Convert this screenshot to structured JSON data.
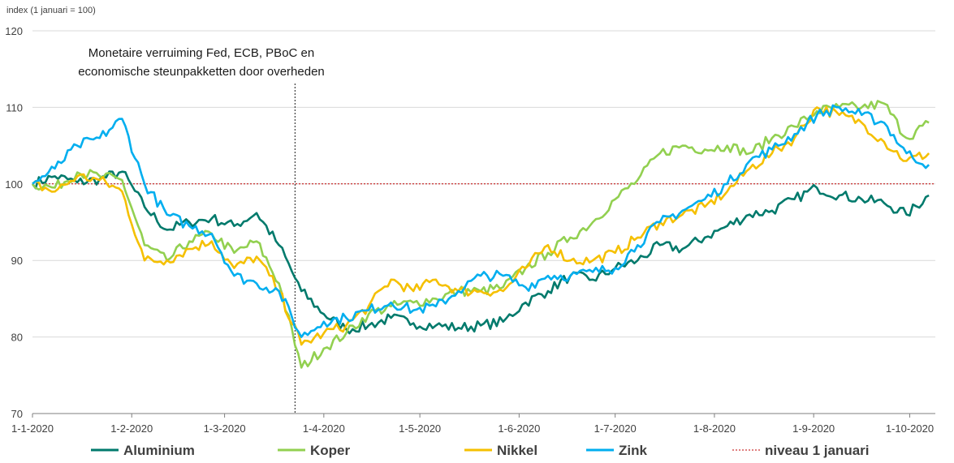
{
  "chart_data": {
    "type": "line",
    "ylabel": "index (1 januari = 100)",
    "ylim": [
      70,
      120
    ],
    "yticks": [
      "70",
      "80",
      "90",
      "100",
      "110",
      "120"
    ],
    "xlim": [
      "2020-01-01",
      "2020-10-09"
    ],
    "xticks": [
      {
        "date": "2020-01-01",
        "label": "1-1-2020"
      },
      {
        "date": "2020-02-01",
        "label": "1-2-2020"
      },
      {
        "date": "2020-03-01",
        "label": "1-3-2020"
      },
      {
        "date": "2020-04-01",
        "label": "1-4-2020"
      },
      {
        "date": "2020-05-01",
        "label": "1-5-2020"
      },
      {
        "date": "2020-06-01",
        "label": "1-6-2020"
      },
      {
        "date": "2020-07-01",
        "label": "1-7-2020"
      },
      {
        "date": "2020-08-01",
        "label": "1-8-2020"
      },
      {
        "date": "2020-09-01",
        "label": "1-9-2020"
      },
      {
        "date": "2020-10-01",
        "label": "1-10-2020"
      }
    ],
    "reference_line": {
      "name": "niveau 1 januari",
      "value": 100,
      "color": "#c00000"
    },
    "annotation": {
      "date": "2020-03-23",
      "lines": [
        "Monetaire verruiming Fed, ECB, PBoC en",
        "economische steunpakketten door overheden"
      ]
    },
    "series": [
      {
        "name": "Aluminium",
        "color": "#007a6c",
        "points": [
          [
            "2020-01-01",
            100
          ],
          [
            "2020-01-08",
            101
          ],
          [
            "2020-01-15",
            100.2
          ],
          [
            "2020-01-22",
            100.6
          ],
          [
            "2020-01-29",
            101.6
          ],
          [
            "2020-02-05",
            97
          ],
          [
            "2020-02-12",
            94
          ],
          [
            "2020-02-19",
            95
          ],
          [
            "2020-02-26",
            95.5
          ],
          [
            "2020-03-04",
            94.5
          ],
          [
            "2020-03-11",
            96.2
          ],
          [
            "2020-03-18",
            92
          ],
          [
            "2020-03-25",
            86
          ],
          [
            "2020-04-01",
            83
          ],
          [
            "2020-04-08",
            81
          ],
          [
            "2020-04-15",
            81.5
          ],
          [
            "2020-04-22",
            82.5
          ],
          [
            "2020-04-29",
            81.8
          ],
          [
            "2020-05-06",
            81.5
          ],
          [
            "2020-05-13",
            81.2
          ],
          [
            "2020-05-20",
            81.5
          ],
          [
            "2020-05-27",
            82
          ],
          [
            "2020-06-03",
            84.5
          ],
          [
            "2020-06-10",
            86
          ],
          [
            "2020-06-17",
            88
          ],
          [
            "2020-06-24",
            87.5
          ],
          [
            "2020-07-01",
            89
          ],
          [
            "2020-07-08",
            90
          ],
          [
            "2020-07-15",
            92
          ],
          [
            "2020-07-22",
            91.5
          ],
          [
            "2020-07-29",
            93
          ],
          [
            "2020-08-05",
            94.5
          ],
          [
            "2020-08-12",
            96
          ],
          [
            "2020-08-19",
            96.5
          ],
          [
            "2020-08-26",
            98
          ],
          [
            "2020-09-02",
            99.5
          ],
          [
            "2020-09-09",
            98.5
          ],
          [
            "2020-09-16",
            98
          ],
          [
            "2020-09-23",
            97.5
          ],
          [
            "2020-09-30",
            96
          ],
          [
            "2020-10-07",
            98.5
          ]
        ]
      },
      {
        "name": "Koper",
        "color": "#92d050",
        "points": [
          [
            "2020-01-01",
            100
          ],
          [
            "2020-01-08",
            99.5
          ],
          [
            "2020-01-15",
            101.5
          ],
          [
            "2020-01-22",
            101
          ],
          [
            "2020-01-29",
            100.5
          ],
          [
            "2020-02-05",
            92
          ],
          [
            "2020-02-12",
            90
          ],
          [
            "2020-02-19",
            92.5
          ],
          [
            "2020-02-26",
            93.5
          ],
          [
            "2020-03-04",
            91
          ],
          [
            "2020-03-11",
            92.5
          ],
          [
            "2020-03-18",
            87
          ],
          [
            "2020-03-25",
            76
          ],
          [
            "2020-04-01",
            78.5
          ],
          [
            "2020-04-08",
            80.5
          ],
          [
            "2020-04-15",
            83
          ],
          [
            "2020-04-22",
            84
          ],
          [
            "2020-04-29",
            84.5
          ],
          [
            "2020-05-06",
            85
          ],
          [
            "2020-05-13",
            86
          ],
          [
            "2020-05-20",
            86
          ],
          [
            "2020-05-27",
            86.5
          ],
          [
            "2020-06-03",
            89
          ],
          [
            "2020-06-10",
            91
          ],
          [
            "2020-06-17",
            93
          ],
          [
            "2020-06-24",
            95
          ],
          [
            "2020-07-01",
            98
          ],
          [
            "2020-07-08",
            100.5
          ],
          [
            "2020-07-15",
            104
          ],
          [
            "2020-07-22",
            105
          ],
          [
            "2020-07-29",
            104.5
          ],
          [
            "2020-08-05",
            105
          ],
          [
            "2020-08-12",
            104
          ],
          [
            "2020-08-19",
            106
          ],
          [
            "2020-08-26",
            107.5
          ],
          [
            "2020-09-02",
            109.5
          ],
          [
            "2020-09-09",
            110
          ],
          [
            "2020-09-16",
            110
          ],
          [
            "2020-09-23",
            110.5
          ],
          [
            "2020-09-30",
            106
          ],
          [
            "2020-10-07",
            108
          ]
        ]
      },
      {
        "name": "Nikkel",
        "color": "#f5c000",
        "points": [
          [
            "2020-01-01",
            100
          ],
          [
            "2020-01-08",
            99
          ],
          [
            "2020-01-15",
            101
          ],
          [
            "2020-01-22",
            100.5
          ],
          [
            "2020-01-29",
            99
          ],
          [
            "2020-02-05",
            90
          ],
          [
            "2020-02-12",
            90
          ],
          [
            "2020-02-19",
            91.5
          ],
          [
            "2020-02-26",
            92.5
          ],
          [
            "2020-03-04",
            89
          ],
          [
            "2020-03-11",
            90.5
          ],
          [
            "2020-03-18",
            86
          ],
          [
            "2020-03-25",
            79
          ],
          [
            "2020-04-01",
            80.5
          ],
          [
            "2020-04-08",
            81.5
          ],
          [
            "2020-04-15",
            84
          ],
          [
            "2020-04-22",
            87.5
          ],
          [
            "2020-04-29",
            86
          ],
          [
            "2020-05-06",
            87.5
          ],
          [
            "2020-05-13",
            86
          ],
          [
            "2020-05-20",
            86
          ],
          [
            "2020-05-27",
            86
          ],
          [
            "2020-06-03",
            89
          ],
          [
            "2020-06-10",
            92
          ],
          [
            "2020-06-17",
            90
          ],
          [
            "2020-06-24",
            90
          ],
          [
            "2020-07-01",
            91
          ],
          [
            "2020-07-08",
            93
          ],
          [
            "2020-07-15",
            95
          ],
          [
            "2020-07-22",
            96
          ],
          [
            "2020-07-29",
            97
          ],
          [
            "2020-08-05",
            99
          ],
          [
            "2020-08-12",
            102
          ],
          [
            "2020-08-19",
            104
          ],
          [
            "2020-08-26",
            106
          ],
          [
            "2020-09-02",
            110
          ],
          [
            "2020-09-09",
            109
          ],
          [
            "2020-09-16",
            108
          ],
          [
            "2020-09-23",
            105.5
          ],
          [
            "2020-09-30",
            103
          ],
          [
            "2020-10-07",
            104
          ]
        ]
      },
      {
        "name": "Zink",
        "color": "#00aeef",
        "points": [
          [
            "2020-01-01",
            100
          ],
          [
            "2020-01-08",
            102
          ],
          [
            "2020-01-15",
            105
          ],
          [
            "2020-01-22",
            106
          ],
          [
            "2020-01-29",
            108.5
          ],
          [
            "2020-02-05",
            100
          ],
          [
            "2020-02-12",
            96
          ],
          [
            "2020-02-19",
            94.5
          ],
          [
            "2020-02-26",
            93.5
          ],
          [
            "2020-03-04",
            88
          ],
          [
            "2020-03-11",
            87
          ],
          [
            "2020-03-18",
            86
          ],
          [
            "2020-03-25",
            80
          ],
          [
            "2020-04-01",
            82
          ],
          [
            "2020-04-08",
            82.5
          ],
          [
            "2020-04-15",
            83.5
          ],
          [
            "2020-04-22",
            84.5
          ],
          [
            "2020-04-29",
            83.5
          ],
          [
            "2020-05-06",
            84
          ],
          [
            "2020-05-13",
            86
          ],
          [
            "2020-05-20",
            88
          ],
          [
            "2020-05-27",
            88
          ],
          [
            "2020-06-03",
            86.5
          ],
          [
            "2020-06-10",
            88
          ],
          [
            "2020-06-17",
            88
          ],
          [
            "2020-06-24",
            88.5
          ],
          [
            "2020-07-01",
            89
          ],
          [
            "2020-07-08",
            92
          ],
          [
            "2020-07-15",
            95
          ],
          [
            "2020-07-22",
            96.5
          ],
          [
            "2020-07-29",
            98
          ],
          [
            "2020-08-05",
            100
          ],
          [
            "2020-08-12",
            103
          ],
          [
            "2020-08-19",
            104.5
          ],
          [
            "2020-08-26",
            106.5
          ],
          [
            "2020-09-02",
            109
          ],
          [
            "2020-09-09",
            110
          ],
          [
            "2020-09-16",
            109
          ],
          [
            "2020-09-23",
            108
          ],
          [
            "2020-09-30",
            104
          ],
          [
            "2020-10-07",
            102.5
          ]
        ]
      }
    ]
  }
}
